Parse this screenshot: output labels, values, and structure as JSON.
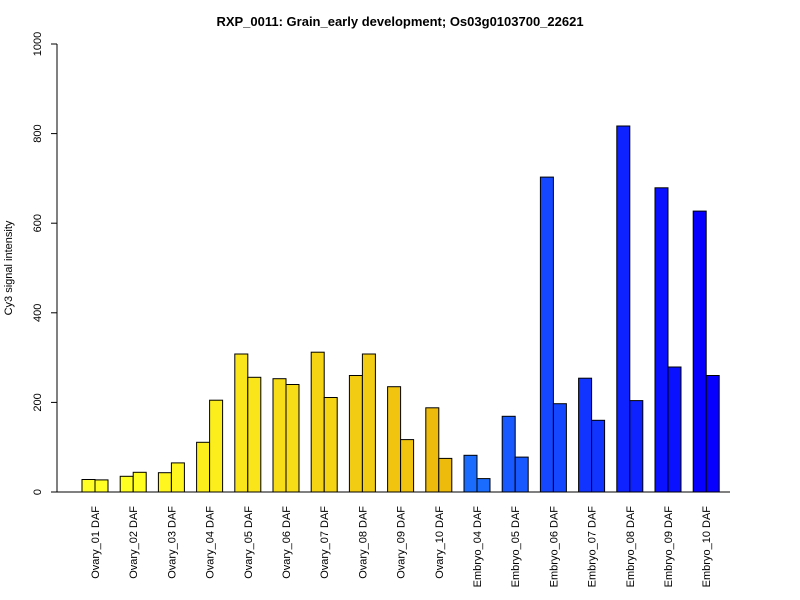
{
  "chart_data": {
    "type": "bar",
    "title": "RXP_0011: Grain_early development; Os03g0103700_22621",
    "xlabel": "",
    "ylabel": "Cy3 signal intensity",
    "ylim": [
      0,
      1000
    ],
    "yticks": [
      0,
      200,
      400,
      600,
      800,
      1000
    ],
    "grid": false,
    "legend": "none",
    "categories": [
      "Ovary_01 DAF",
      "Ovary_02 DAF",
      "Ovary_03 DAF",
      "Ovary_04 DAF",
      "Ovary_05 DAF",
      "Ovary_06 DAF",
      "Ovary_07 DAF",
      "Ovary_08 DAF",
      "Ovary_09 DAF",
      "Ovary_10 DAF",
      "Embryo_04 DAF",
      "Embryo_05 DAF",
      "Embryo_06 DAF",
      "Embryo_07 DAF",
      "Embryo_08 DAF",
      "Embryo_09 DAF",
      "Embryo_10 DAF"
    ],
    "series": [
      {
        "values": [
          28,
          35,
          43,
          111,
          308,
          253,
          312,
          260,
          235,
          188,
          82,
          169,
          703,
          254,
          817,
          679,
          627
        ]
      },
      {
        "values": [
          27,
          44,
          65,
          205,
          256,
          240,
          211,
          308,
          117,
          75,
          30,
          78,
          197,
          160,
          204,
          279,
          260
        ]
      }
    ],
    "colors": [
      "#ffff26",
      "#ffff22",
      "#fff61f",
      "#fcee1c",
      "#fae51a",
      "#f7dd17",
      "#f5d414",
      "#f2cc12",
      "#f0c40f",
      "#edbb0c",
      "#1a6cff",
      "#1759ff",
      "#1447ff",
      "#1134ff",
      "#0d22ff",
      "#0a11ff",
      "#0700ff"
    ]
  }
}
